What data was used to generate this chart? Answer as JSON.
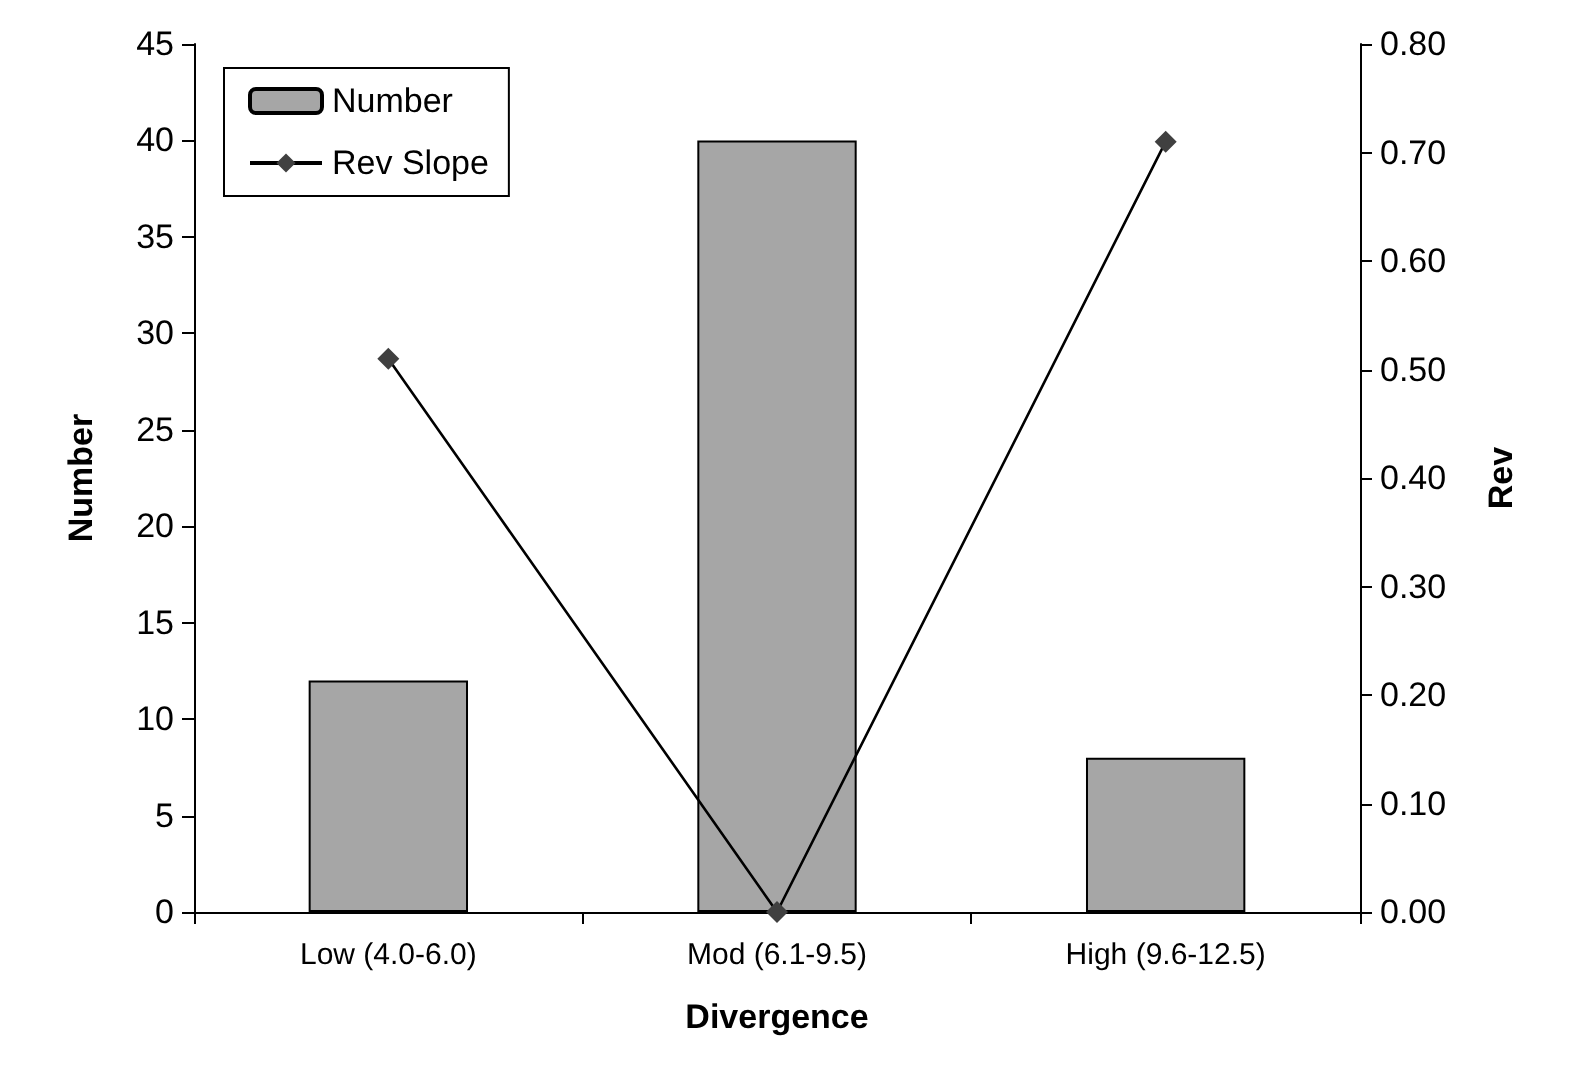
{
  "chart_data": {
    "type": "bar",
    "xlabel": "Divergence",
    "ylabel": "Number",
    "y2label": "Rev",
    "categories": [
      "Low (4.0-6.0)",
      "Mod (6.1-9.5)",
      "High (9.6-12.5)"
    ],
    "series": [
      {
        "name": "Number",
        "color": "#a6a6a6",
        "values": [
          12,
          40,
          8
        ]
      },
      {
        "name": "Rev Slope",
        "type": "line",
        "axis": "y2",
        "color": "#404040",
        "values": [
          0.51,
          0.0,
          0.71
        ]
      }
    ],
    "ylim": [
      0,
      45
    ],
    "yticks": [
      0,
      5,
      10,
      15,
      20,
      25,
      30,
      35,
      40,
      45
    ],
    "y2lim": [
      0,
      0.8
    ],
    "y2ticks": [
      {
        "value": 0,
        "label": "0.00"
      },
      {
        "value": 0.1,
        "label": "0.10"
      },
      {
        "value": 0.2,
        "label": "0.20"
      },
      {
        "value": 0.3,
        "label": "0.30"
      },
      {
        "value": 0.4,
        "label": "0.40"
      },
      {
        "value": 0.5,
        "label": "0.50"
      },
      {
        "value": 0.6,
        "label": "0.60"
      },
      {
        "value": 0.7,
        "label": "0.70"
      },
      {
        "value": 0.8,
        "label": "0.80"
      }
    ],
    "grid": false,
    "legend": "top left",
    "marker": "diamond",
    "line_style": "solid"
  }
}
